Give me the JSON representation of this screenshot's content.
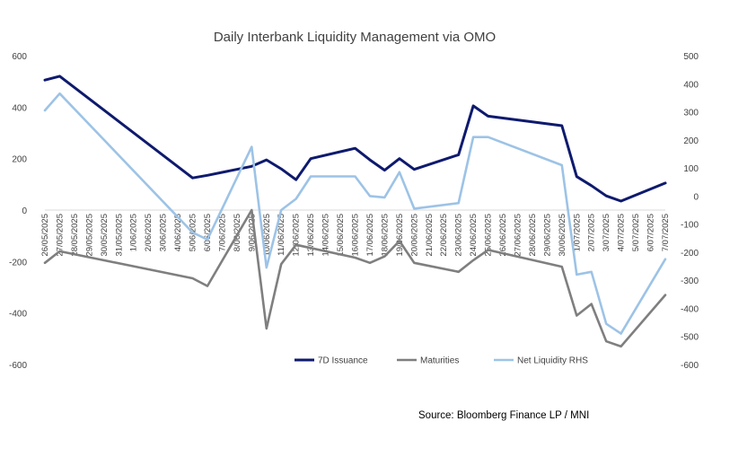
{
  "chart_data": {
    "type": "line",
    "title": "Daily Interbank Liquidity Management via OMO",
    "source": "Source: Bloomberg Finance LP / MNI",
    "x": [
      "26/05/2025",
      "27/05/2025",
      "28/05/2025",
      "29/05/2025",
      "30/05/2025",
      "31/05/2025",
      "1/06/2025",
      "2/06/2025",
      "3/06/2025",
      "4/06/2025",
      "5/06/2025",
      "6/06/2025",
      "7/06/2025",
      "8/06/2025",
      "9/06/2025",
      "10/06/2025",
      "11/06/2025",
      "12/06/2025",
      "13/06/2025",
      "14/06/2025",
      "15/06/2025",
      "16/06/2025",
      "17/06/2025",
      "18/06/2025",
      "19/06/2025",
      "20/06/2025",
      "21/06/2025",
      "22/06/2025",
      "23/06/2025",
      "24/06/2025",
      "25/06/2025",
      "26/06/2025",
      "27/06/2025",
      "28/06/2025",
      "29/06/2025",
      "30/06/2025",
      "1/07/2025",
      "2/07/2025",
      "3/07/2025",
      "4/07/2025",
      "5/07/2025",
      "6/07/2025",
      "7/07/2025"
    ],
    "ylim_left": [
      -600,
      600
    ],
    "yticks_left": [
      600,
      400,
      200,
      0,
      -200,
      -400,
      -600
    ],
    "ylim_right": [
      -600,
      500
    ],
    "yticks_right": [
      500,
      400,
      300,
      200,
      100,
      0,
      -100,
      -200,
      -300,
      -400,
      -500,
      -600
    ],
    "series": [
      {
        "name": "7D Issuance",
        "axis": "left",
        "color": "#0e1a6e",
        "values": [
          505,
          520,
          null,
          null,
          null,
          null,
          null,
          null,
          null,
          null,
          125,
          135,
          null,
          null,
          170,
          195,
          160,
          118,
          200,
          null,
          null,
          240,
          195,
          155,
          200,
          158,
          null,
          null,
          215,
          405,
          365,
          null,
          null,
          null,
          null,
          328,
          130,
          95,
          55,
          35,
          null,
          null,
          105
        ]
      },
      {
        "name": "Maturities",
        "axis": "left",
        "color": "#7f7f7f",
        "values": [
          -205,
          -160,
          null,
          null,
          null,
          null,
          null,
          null,
          null,
          null,
          -265,
          -295,
          null,
          null,
          0,
          -460,
          -210,
          -135,
          null,
          null,
          null,
          -185,
          -205,
          -180,
          -120,
          -205,
          null,
          null,
          -240,
          -195,
          -155,
          null,
          null,
          null,
          null,
          -220,
          -410,
          -365,
          -510,
          -530,
          null,
          null,
          -330
        ]
      },
      {
        "name": "Net Liquidity RHS",
        "axis": "right",
        "color": "#9dc3e6",
        "values": [
          305,
          365,
          null,
          null,
          null,
          null,
          null,
          null,
          null,
          null,
          -130,
          -155,
          null,
          null,
          175,
          -255,
          -50,
          -10,
          70,
          null,
          null,
          70,
          0,
          -5,
          85,
          -45,
          null,
          null,
          -25,
          210,
          210,
          null,
          null,
          null,
          null,
          110,
          -280,
          -270,
          -455,
          -490,
          null,
          null,
          -225
        ]
      }
    ],
    "legend_position": "bottom",
    "grid": false
  }
}
